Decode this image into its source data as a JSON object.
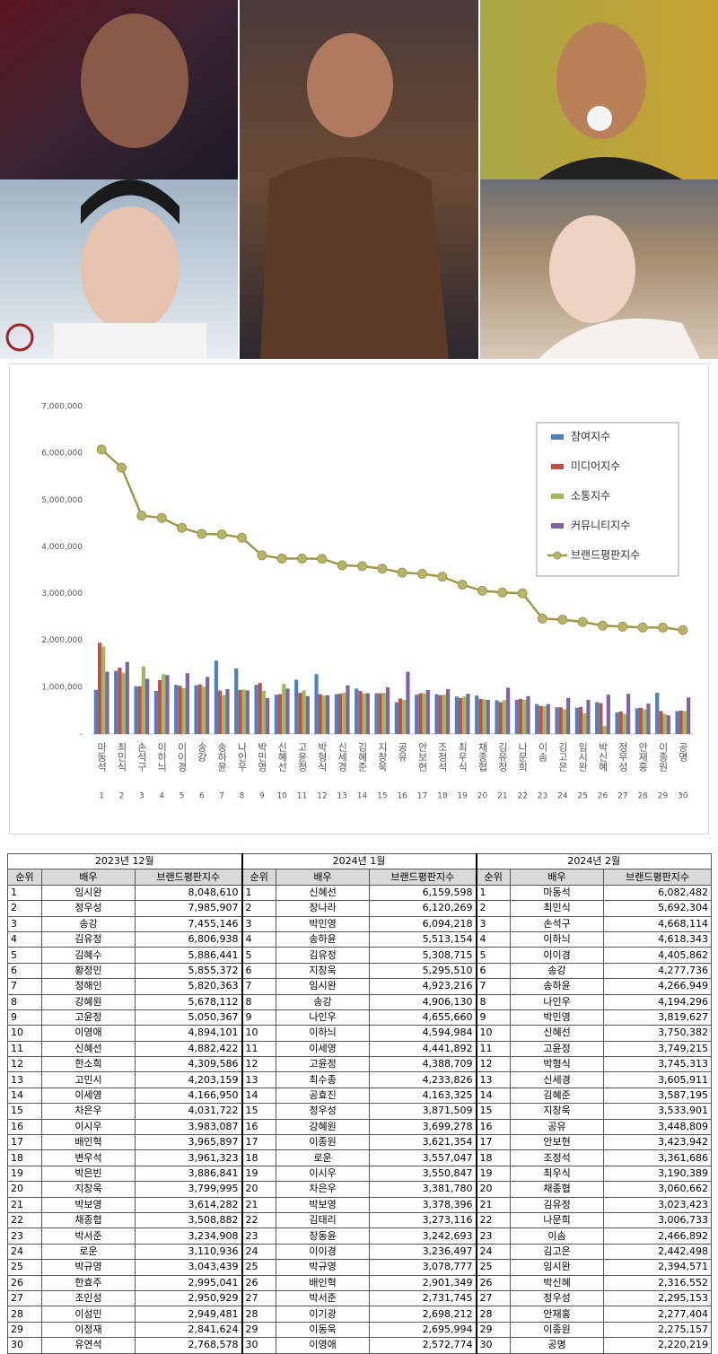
{
  "chart_data": {
    "type": "bar",
    "categories": [
      "마동석",
      "최민식",
      "손석구",
      "이하늬",
      "이이경",
      "송강",
      "송하윤",
      "나인우",
      "박민영",
      "신혜선",
      "고윤정",
      "박형식",
      "신세경",
      "김혜준",
      "지창욱",
      "공유",
      "안보현",
      "조정석",
      "최우식",
      "채종협",
      "김유정",
      "나문희",
      "이솜",
      "김고은",
      "임시완",
      "박신혜",
      "정우성",
      "안재홍",
      "이종원",
      "공명"
    ],
    "category_numbers": [
      1,
      2,
      3,
      4,
      5,
      6,
      7,
      8,
      9,
      10,
      11,
      12,
      13,
      14,
      15,
      16,
      17,
      18,
      19,
      20,
      21,
      22,
      23,
      24,
      25,
      26,
      27,
      28,
      29,
      30
    ],
    "ylim": [
      0,
      7000000
    ],
    "yticks": [
      {
        "value": 0,
        "label": "-"
      },
      {
        "value": 1000000,
        "label": "1,000,000"
      },
      {
        "value": 2000000,
        "label": "2,000,000"
      },
      {
        "value": 3000000,
        "label": "3,000,000"
      },
      {
        "value": 4000000,
        "label": "4,000,000"
      },
      {
        "value": 5000000,
        "label": "5,000,000"
      },
      {
        "value": 6000000,
        "label": "6,000,000"
      },
      {
        "value": 7000000,
        "label": "7,000,000"
      }
    ],
    "grid": false,
    "legend": "upper right",
    "series": [
      {
        "name": "참여지수",
        "type": "bar",
        "color": "#4f81bd",
        "values": [
          940000,
          1350000,
          1020000,
          920000,
          1050000,
          1040000,
          1570000,
          1400000,
          1050000,
          840000,
          1160000,
          1280000,
          850000,
          970000,
          870000,
          680000,
          840000,
          850000,
          800000,
          820000,
          720000,
          730000,
          640000,
          570000,
          560000,
          680000,
          460000,
          550000,
          880000,
          490000
        ]
      },
      {
        "name": "미디어지수",
        "type": "bar",
        "color": "#c0504d",
        "values": [
          1950000,
          1420000,
          1020000,
          1150000,
          1030000,
          1060000,
          930000,
          940000,
          1090000,
          850000,
          880000,
          850000,
          860000,
          920000,
          870000,
          760000,
          870000,
          830000,
          770000,
          750000,
          680000,
          750000,
          600000,
          570000,
          580000,
          660000,
          480000,
          560000,
          490000,
          500000
        ]
      },
      {
        "name": "소통지수",
        "type": "bar",
        "color": "#9bbb59",
        "values": [
          1870000,
          1310000,
          1440000,
          1280000,
          980000,
          1010000,
          830000,
          950000,
          920000,
          1070000,
          930000,
          820000,
          880000,
          870000,
          880000,
          730000,
          870000,
          840000,
          800000,
          740000,
          720000,
          730000,
          590000,
          530000,
          440000,
          170000,
          430000,
          530000,
          430000,
          490000
        ]
      },
      {
        "name": "커뮤니티지수",
        "type": "bar",
        "color": "#8064a2",
        "values": [
          1330000,
          1540000,
          1180000,
          1260000,
          1300000,
          1220000,
          960000,
          930000,
          770000,
          970000,
          810000,
          830000,
          1040000,
          870000,
          1000000,
          1330000,
          940000,
          960000,
          860000,
          730000,
          990000,
          810000,
          640000,
          770000,
          730000,
          840000,
          860000,
          650000,
          400000,
          780000
        ]
      },
      {
        "name": "브랜드평판지수",
        "type": "line",
        "color": "#9a9a4a",
        "values": [
          6082482,
          5692304,
          4668114,
          4618343,
          4405862,
          4277736,
          4266949,
          4194296,
          3819627,
          3750382,
          3749215,
          3745313,
          3605911,
          3587195,
          3533901,
          3448809,
          3423942,
          3361686,
          3190389,
          3060662,
          3023423,
          3006733,
          2466892,
          2442498,
          2394571,
          2316552,
          2295153,
          2277404,
          2275157,
          2220219
        ]
      }
    ]
  },
  "table": {
    "groups": [
      {
        "title": "2023년 12월",
        "columns": [
          "순위",
          "배우",
          "브랜드평판지수"
        ],
        "rows": [
          [
            1,
            "임시완",
            "8,048,610"
          ],
          [
            2,
            "정우성",
            "7,985,907"
          ],
          [
            3,
            "송강",
            "7,455,146"
          ],
          [
            4,
            "김유정",
            "6,806,938"
          ],
          [
            5,
            "김혜수",
            "5,886,441"
          ],
          [
            6,
            "황정민",
            "5,855,372"
          ],
          [
            7,
            "정해인",
            "5,820,363"
          ],
          [
            8,
            "강혜원",
            "5,678,112"
          ],
          [
            9,
            "고윤정",
            "5,050,367"
          ],
          [
            10,
            "이영애",
            "4,894,101"
          ],
          [
            11,
            "신혜선",
            "4,882,422"
          ],
          [
            12,
            "한소희",
            "4,309,586"
          ],
          [
            13,
            "고민시",
            "4,203,159"
          ],
          [
            14,
            "이세영",
            "4,166,950"
          ],
          [
            15,
            "차은우",
            "4,031,722"
          ],
          [
            16,
            "이시우",
            "3,983,087"
          ],
          [
            17,
            "배인혁",
            "3,965,897"
          ],
          [
            18,
            "변우석",
            "3,961,323"
          ],
          [
            19,
            "박은빈",
            "3,886,841"
          ],
          [
            20,
            "지창욱",
            "3,799,995"
          ],
          [
            21,
            "박보영",
            "3,614,282"
          ],
          [
            22,
            "채종협",
            "3,508,882"
          ],
          [
            23,
            "박서준",
            "3,234,908"
          ],
          [
            24,
            "로운",
            "3,110,936"
          ],
          [
            25,
            "박규영",
            "3,043,439"
          ],
          [
            26,
            "한효주",
            "2,995,041"
          ],
          [
            27,
            "조인성",
            "2,950,929"
          ],
          [
            28,
            "이성민",
            "2,949,481"
          ],
          [
            29,
            "이정재",
            "2,841,624"
          ],
          [
            30,
            "유연석",
            "2,768,578"
          ]
        ]
      },
      {
        "title": "2024년 1월",
        "columns": [
          "순위",
          "배우",
          "브랜드평판지수"
        ],
        "rows": [
          [
            1,
            "신혜선",
            "6,159,598"
          ],
          [
            2,
            "장나라",
            "6,120,269"
          ],
          [
            3,
            "박민영",
            "6,094,218"
          ],
          [
            4,
            "송하윤",
            "5,513,154"
          ],
          [
            5,
            "김유정",
            "5,308,715"
          ],
          [
            6,
            "지창욱",
            "5,295,510"
          ],
          [
            7,
            "임시완",
            "4,923,216"
          ],
          [
            8,
            "송강",
            "4,906,130"
          ],
          [
            9,
            "나인우",
            "4,655,660"
          ],
          [
            10,
            "이하늬",
            "4,594,984"
          ],
          [
            11,
            "이세영",
            "4,441,892"
          ],
          [
            12,
            "고윤정",
            "4,388,709"
          ],
          [
            13,
            "최수종",
            "4,233,826"
          ],
          [
            14,
            "공효진",
            "4,163,325"
          ],
          [
            15,
            "정우성",
            "3,871,509"
          ],
          [
            16,
            "강혜원",
            "3,699,278"
          ],
          [
            17,
            "이종원",
            "3,621,354"
          ],
          [
            18,
            "로운",
            "3,557,047"
          ],
          [
            19,
            "이시우",
            "3,550,847"
          ],
          [
            20,
            "차은우",
            "3,381,780"
          ],
          [
            21,
            "박보영",
            "3,378,396"
          ],
          [
            22,
            "김태리",
            "3,273,116"
          ],
          [
            23,
            "장동윤",
            "3,242,693"
          ],
          [
            24,
            "이이경",
            "3,236,497"
          ],
          [
            25,
            "박규영",
            "3,078,777"
          ],
          [
            26,
            "배인혁",
            "2,901,349"
          ],
          [
            27,
            "박서준",
            "2,731,745"
          ],
          [
            28,
            "이기광",
            "2,698,212"
          ],
          [
            29,
            "이동욱",
            "2,695,994"
          ],
          [
            30,
            "이영애",
            "2,572,774"
          ]
        ]
      },
      {
        "title": "2024년 2월",
        "columns": [
          "순위",
          "배우",
          "브랜드평판지수"
        ],
        "rows": [
          [
            1,
            "마동석",
            "6,082,482"
          ],
          [
            2,
            "최민식",
            "5,692,304"
          ],
          [
            3,
            "손석구",
            "4,668,114"
          ],
          [
            4,
            "이하늬",
            "4,618,343"
          ],
          [
            5,
            "이이경",
            "4,405,862"
          ],
          [
            6,
            "송강",
            "4,277,736"
          ],
          [
            7,
            "송하윤",
            "4,266,949"
          ],
          [
            8,
            "나인우",
            "4,194,296"
          ],
          [
            9,
            "박민영",
            "3,819,627"
          ],
          [
            10,
            "신혜선",
            "3,750,382"
          ],
          [
            11,
            "고윤정",
            "3,749,215"
          ],
          [
            12,
            "박형식",
            "3,745,313"
          ],
          [
            13,
            "신세경",
            "3,605,911"
          ],
          [
            14,
            "김혜준",
            "3,587,195"
          ],
          [
            15,
            "지창욱",
            "3,533,901"
          ],
          [
            16,
            "공유",
            "3,448,809"
          ],
          [
            17,
            "안보현",
            "3,423,942"
          ],
          [
            18,
            "조정석",
            "3,361,686"
          ],
          [
            19,
            "최우식",
            "3,190,389"
          ],
          [
            20,
            "채종협",
            "3,060,662"
          ],
          [
            21,
            "김유정",
            "3,023,423"
          ],
          [
            22,
            "나문희",
            "3,006,733"
          ],
          [
            23,
            "이솜",
            "2,466,892"
          ],
          [
            24,
            "김고은",
            "2,442,498"
          ],
          [
            25,
            "임시완",
            "2,394,571"
          ],
          [
            26,
            "박신혜",
            "2,316,552"
          ],
          [
            27,
            "정우성",
            "2,295,153"
          ],
          [
            28,
            "안재홍",
            "2,277,404"
          ],
          [
            29,
            "이종원",
            "2,275,157"
          ],
          [
            30,
            "공명",
            "2,220,219"
          ]
        ]
      }
    ]
  }
}
